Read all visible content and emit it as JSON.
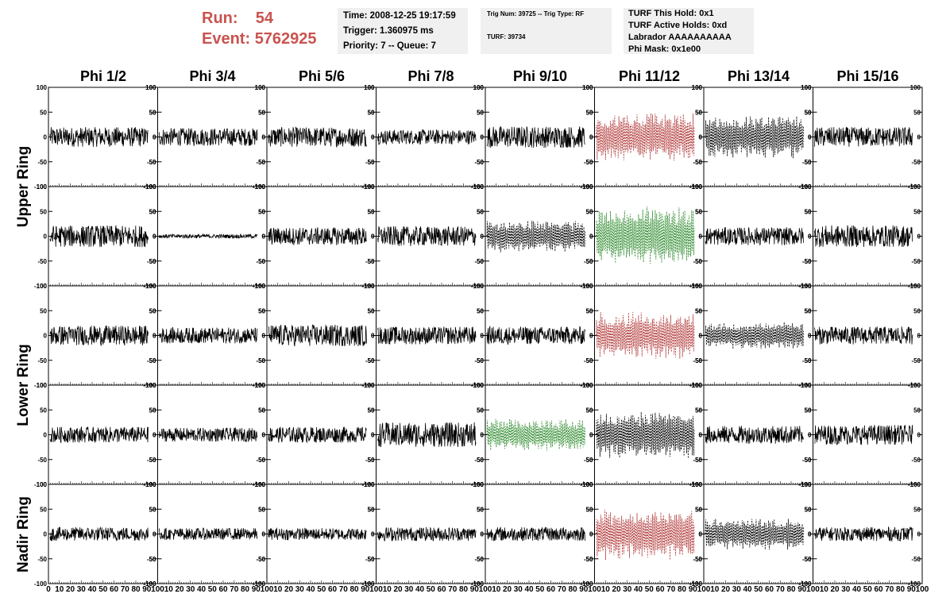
{
  "header": {
    "run_label": "Run:",
    "run_value": "54",
    "event_label": "Event:",
    "event_value": "5762925",
    "time": "Time: 2008-12-25 19:17:59",
    "trigger": "Trigger: 1.360975 ms",
    "priority": "Priority: 7 -- Queue: 7",
    "trig_num": "Trig Num: 39725 -- Trig Type: RF",
    "turf": "TURF: 39734",
    "turf_hold": "TURF This Hold: 0x1",
    "turf_active": "TURF Active Holds: 0xd",
    "labrador": "Labrador AAAAAAAAAA",
    "phi_mask": "Phi Mask: 0x1e00"
  },
  "columns": [
    "Phi 1/2",
    "Phi 3/4",
    "Phi 5/6",
    "Phi 7/8",
    "Phi 9/10",
    "Phi 11/12",
    "Phi 13/14",
    "Phi 15/16"
  ],
  "rows": [
    {
      "label": "Upper Ring",
      "span": [
        0,
        1
      ]
    },
    {
      "label": "Lower Ring",
      "span": [
        2,
        3
      ]
    },
    {
      "label": "Nadir Ring",
      "span": [
        4,
        4
      ]
    }
  ],
  "colors": {
    "trace": "#000000",
    "red": "#b23a3a",
    "green": "#2e8b2e",
    "run_text": "#c9534f",
    "box": "#f0f0f0"
  },
  "chart_data": {
    "type": "line",
    "ylim": [
      -100,
      100
    ],
    "xlim": [
      0,
      100
    ],
    "yticks": [
      -100,
      -50,
      0,
      50,
      100
    ],
    "xticks": [
      0,
      10,
      20,
      30,
      40,
      50,
      60,
      70,
      80,
      90,
      100
    ],
    "grid": false,
    "panels": [
      [
        "normal",
        "normal",
        "normal",
        "normal",
        "normal",
        "red",
        "black-dotted",
        "normal"
      ],
      [
        "normal",
        "flat",
        "normal",
        "normal",
        "black-dotted",
        "green",
        "normal",
        "normal"
      ],
      [
        "normal",
        "normal",
        "normal",
        "normal",
        "normal",
        "red",
        "black-dotted",
        "normal"
      ],
      [
        "normal",
        "normal",
        "normal",
        "normal",
        "green",
        "black-dotted",
        "normal",
        "normal"
      ],
      [
        "normal",
        "normal",
        "normal",
        "normal",
        "normal",
        "red",
        "black-dotted",
        "normal"
      ]
    ],
    "amplitudes": [
      [
        20,
        18,
        20,
        15,
        22,
        45,
        40,
        20
      ],
      [
        22,
        4,
        18,
        20,
        30,
        55,
        18,
        22
      ],
      [
        20,
        16,
        22,
        18,
        18,
        45,
        25,
        18
      ],
      [
        16,
        14,
        16,
        25,
        30,
        45,
        18,
        20
      ],
      [
        14,
        12,
        12,
        14,
        14,
        48,
        30,
        14
      ]
    ]
  }
}
